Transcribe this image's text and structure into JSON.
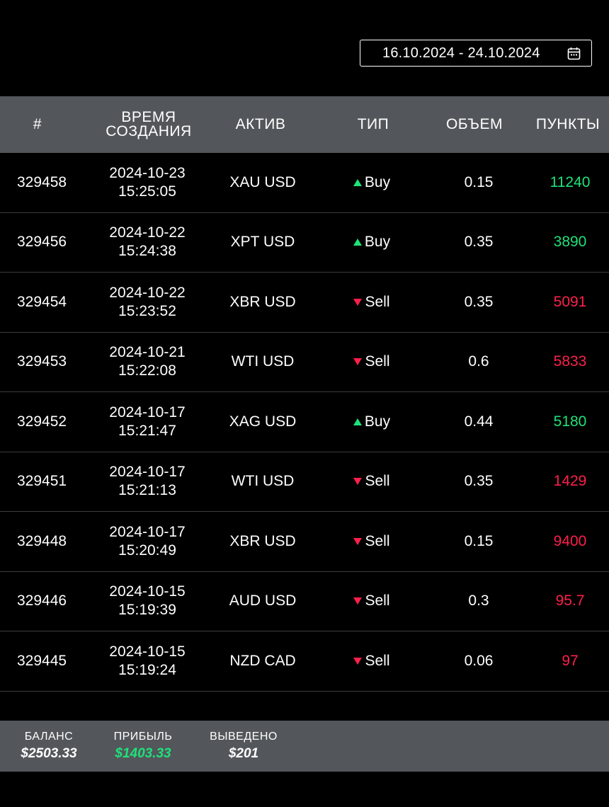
{
  "date_filter": {
    "value": "16.10.2024 - 24.10.2024",
    "icon": "calendar-icon"
  },
  "colors": {
    "buy": "#1ee27a",
    "sell": "#ff1f4b",
    "header_bg": "#53575b"
  },
  "table": {
    "headers": {
      "id": "#",
      "time_line1": "ВРЕМЯ",
      "time_line2": "СОЗДАНИЯ",
      "asset": "АКТИВ",
      "type": "ТИП",
      "volume": "ОБЪЕМ",
      "points": "ПУНКТЫ"
    },
    "rows": [
      {
        "id": "329458",
        "date": "2024-10-23",
        "time": "15:25:05",
        "asset": "XAU USD",
        "type": "Buy",
        "volume": "0.15",
        "points": "11240"
      },
      {
        "id": "329456",
        "date": "2024-10-22",
        "time": "15:24:38",
        "asset": "XPT USD",
        "type": "Buy",
        "volume": "0.35",
        "points": "3890"
      },
      {
        "id": "329454",
        "date": "2024-10-22",
        "time": "15:23:52",
        "asset": "XBR USD",
        "type": "Sell",
        "volume": "0.35",
        "points": "5091"
      },
      {
        "id": "329453",
        "date": "2024-10-21",
        "time": "15:22:08",
        "asset": "WTI USD",
        "type": "Sell",
        "volume": "0.6",
        "points": "5833"
      },
      {
        "id": "329452",
        "date": "2024-10-17",
        "time": "15:21:47",
        "asset": "XAG USD",
        "type": "Buy",
        "volume": "0.44",
        "points": "5180"
      },
      {
        "id": "329451",
        "date": "2024-10-17",
        "time": "15:21:13",
        "asset": "WTI USD",
        "type": "Sell",
        "volume": "0.35",
        "points": "1429"
      },
      {
        "id": "329448",
        "date": "2024-10-17",
        "time": "15:20:49",
        "asset": "XBR USD",
        "type": "Sell",
        "volume": "0.15",
        "points": "9400"
      },
      {
        "id": "329446",
        "date": "2024-10-15",
        "time": "15:19:39",
        "asset": "AUD USD",
        "type": "Sell",
        "volume": "0.3",
        "points": "95.7"
      },
      {
        "id": "329445",
        "date": "2024-10-15",
        "time": "15:19:24",
        "asset": "NZD CAD",
        "type": "Sell",
        "volume": "0.06",
        "points": "97"
      }
    ]
  },
  "summary": {
    "balance_label": "БАЛАНС",
    "balance_value": "$2503.33",
    "profit_label": "ПРИБЫЛЬ",
    "profit_value": "$1403.33",
    "withdrawn_label": "ВЫВЕДЕНО",
    "withdrawn_value": "$201"
  }
}
